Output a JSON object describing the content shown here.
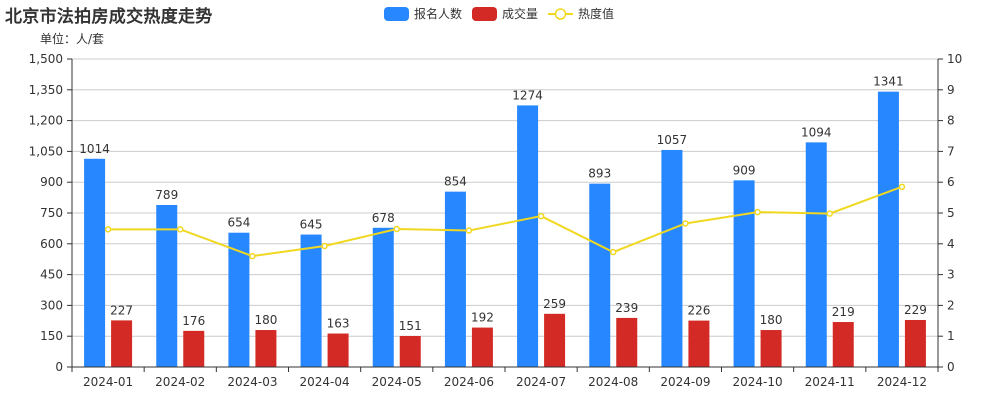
{
  "title": "北京市法拍房成交热度走势",
  "unit_label": "单位：人/套",
  "legend": [
    {
      "name": "报名人数",
      "type": "bar",
      "color": "#2787FF"
    },
    {
      "name": "成交量",
      "type": "bar",
      "color": "#D42A25"
    },
    {
      "name": "热度值",
      "type": "line",
      "color": "#F0D820"
    }
  ],
  "colors": {
    "registrants": "#2787FF",
    "deals": "#D42A25",
    "heat": "#F0D820",
    "grid": "#CCCCCC",
    "axis": "#333333"
  },
  "chart_data": {
    "type": "bar",
    "title": "北京市法拍房成交热度走势",
    "subtitle": "单位：人/套",
    "xlabel": "",
    "ylabel": "",
    "categories": [
      "2024-01",
      "2024-02",
      "2024-03",
      "2024-04",
      "2024-05",
      "2024-06",
      "2024-07",
      "2024-08",
      "2024-09",
      "2024-10",
      "2024-11",
      "2024-12"
    ],
    "series": [
      {
        "name": "报名人数",
        "type": "bar",
        "axis": "left",
        "values": [
          1014,
          789,
          654,
          645,
          678,
          854,
          1274,
          893,
          1057,
          909,
          1094,
          1341
        ]
      },
      {
        "name": "成交量",
        "type": "bar",
        "axis": "left",
        "values": [
          227,
          176,
          180,
          163,
          151,
          192,
          259,
          239,
          226,
          180,
          219,
          229
        ]
      },
      {
        "name": "热度值",
        "type": "line",
        "axis": "right",
        "values": [
          4.47,
          4.47,
          3.6,
          3.93,
          4.48,
          4.43,
          4.9,
          3.73,
          4.66,
          5.03,
          4.98,
          5.85
        ]
      }
    ],
    "ylim": [
      0,
      1500
    ],
    "y_ticks": [
      "0",
      "150",
      "300",
      "450",
      "600",
      "750",
      "900",
      "1,050",
      "1,200",
      "1,350",
      "1,500"
    ],
    "y2lim": [
      0,
      10
    ],
    "y2_ticks": [
      "0",
      "1",
      "2",
      "3",
      "4",
      "5",
      "6",
      "7",
      "8",
      "9",
      "10"
    ],
    "grid": true,
    "legend_position": "top-center"
  }
}
